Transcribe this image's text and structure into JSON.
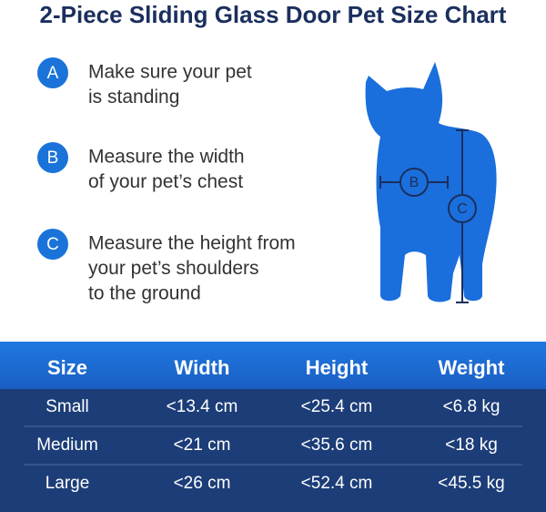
{
  "title": "2-Piece Sliding Glass Door Pet Size Chart",
  "steps": [
    {
      "letter": "A",
      "lines": [
        "Make sure your pet",
        "is standing"
      ]
    },
    {
      "letter": "B",
      "lines": [
        "Measure the width",
        "of your pet’s chest"
      ]
    },
    {
      "letter": "C",
      "lines": [
        "Measure the height from",
        "your pet’s shoulders",
        "to the ground"
      ]
    }
  ],
  "diagram": {
    "width_label": "B",
    "height_label": "C"
  },
  "table": {
    "header": [
      "Size",
      "Width",
      "Height",
      "Weight"
    ],
    "rows": [
      [
        "Small",
        "<13.4 cm",
        "<25.4 cm",
        "<6.8 kg"
      ],
      [
        "Medium",
        "<21 cm",
        "<35.6 cm",
        "<18 kg"
      ],
      [
        "Large",
        "<26 cm",
        "<52.4 cm",
        "<45.5 kg"
      ]
    ]
  }
}
